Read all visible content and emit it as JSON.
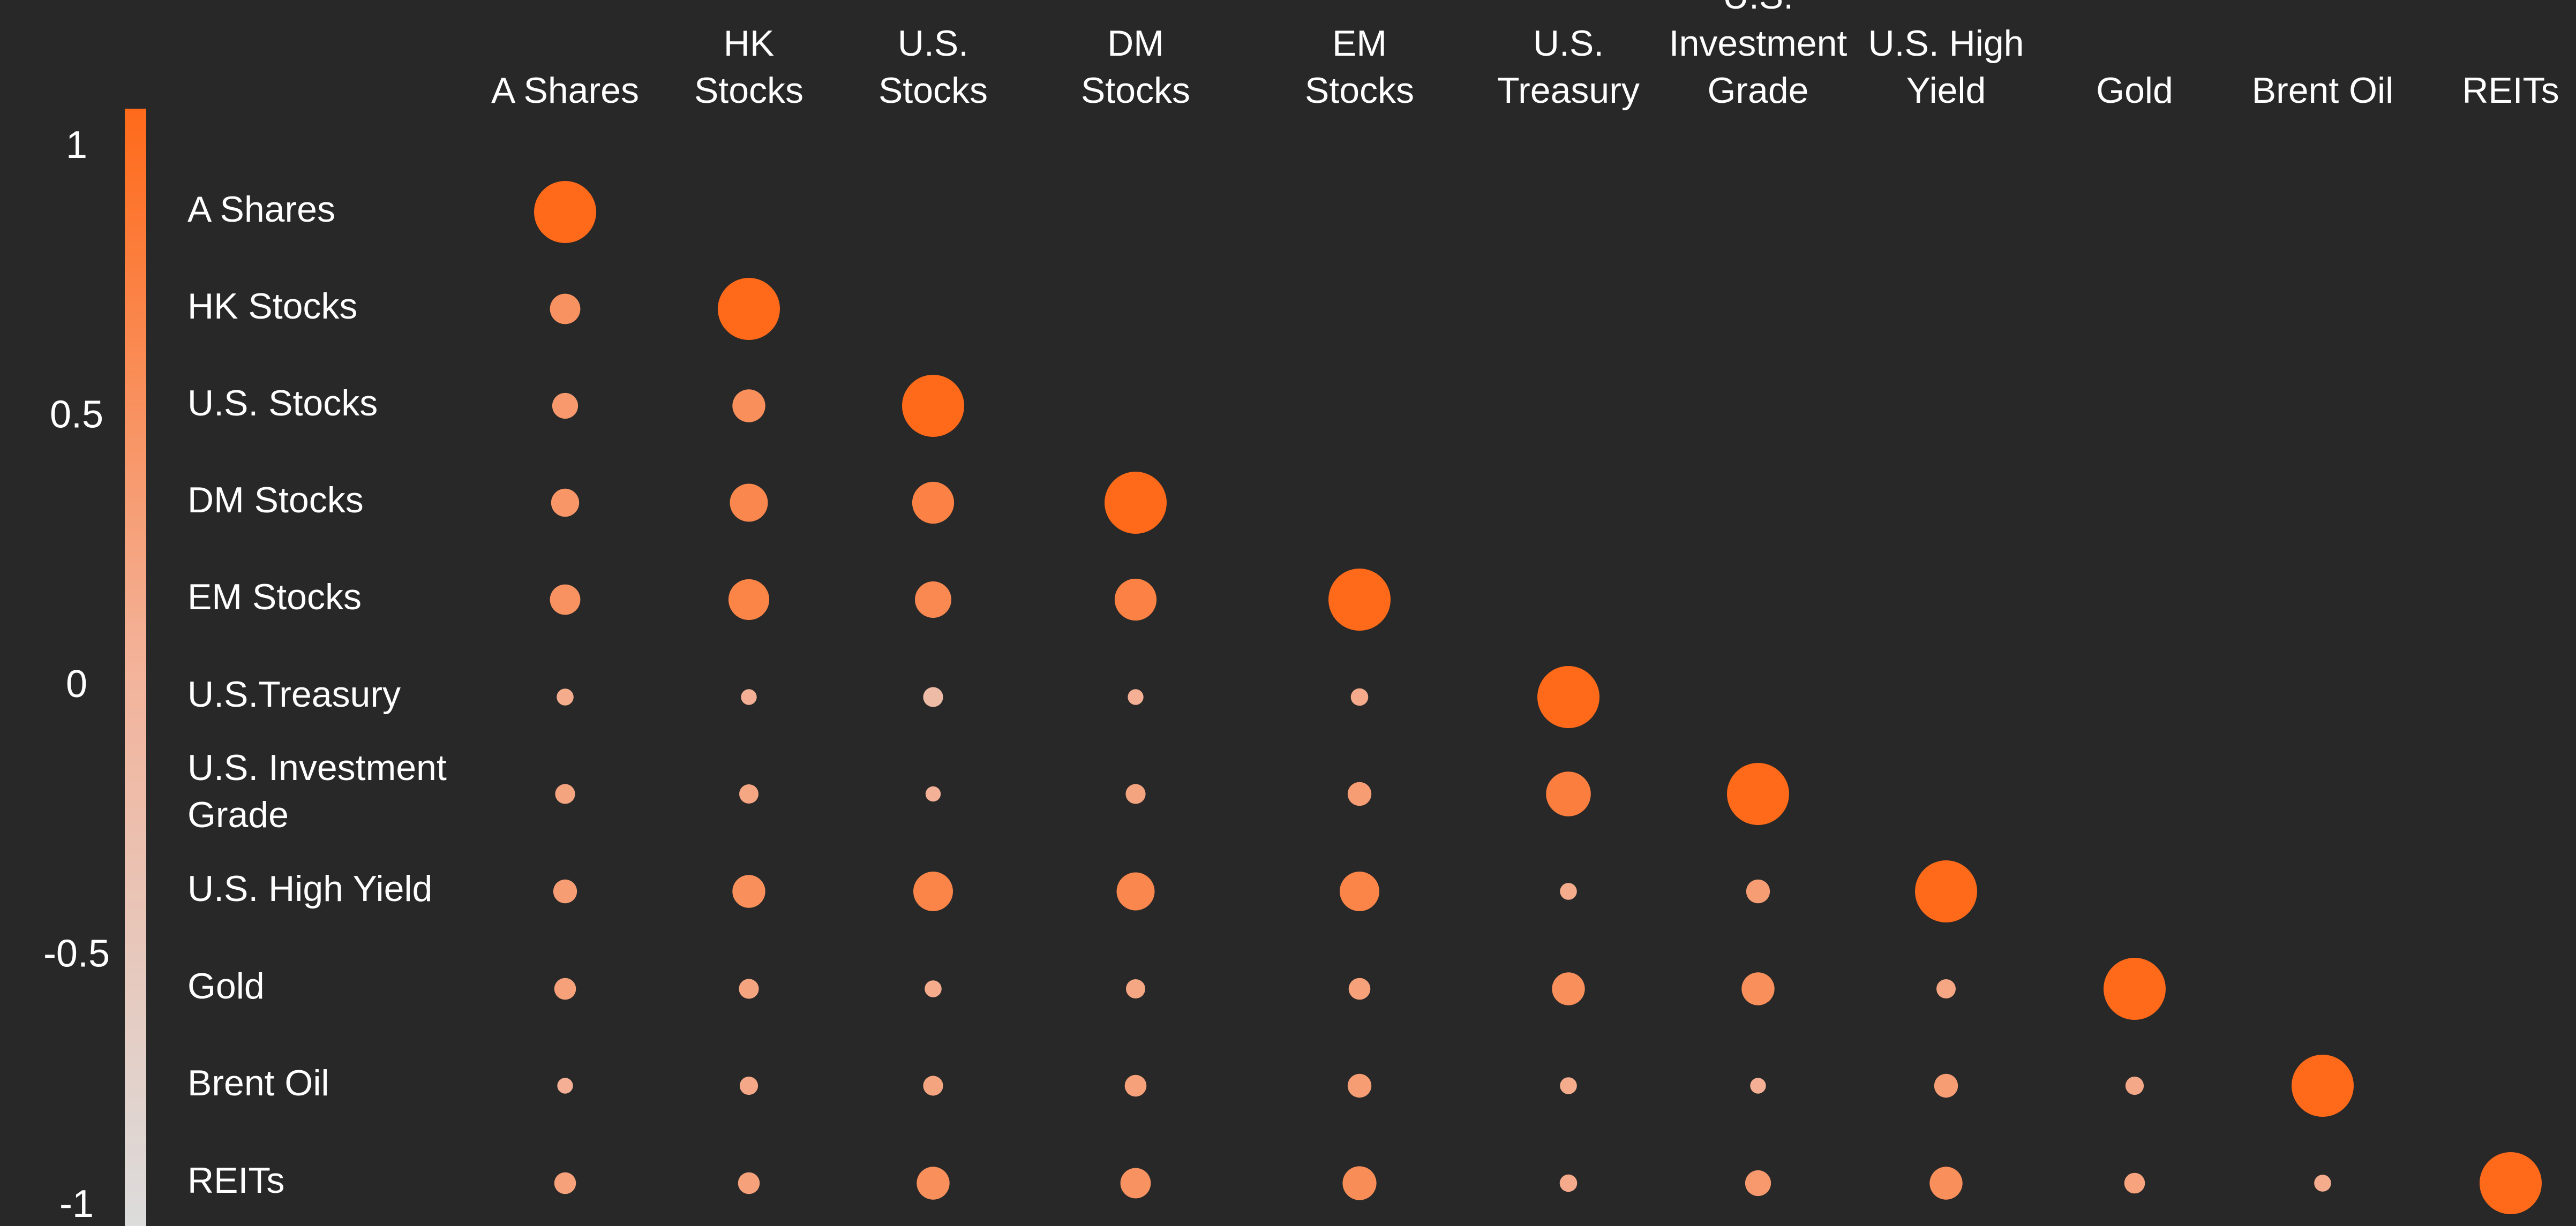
{
  "chart_data": {
    "type": "heatmap",
    "title": "",
    "xlabel": "",
    "ylabel": "",
    "columns": [
      "A Shares",
      "HK Stocks",
      "U.S. Stocks",
      "DM Stocks",
      "EM Stocks",
      "U.S. Treasury",
      "U.S. Investment Grade",
      "U.S. High Yield",
      "Gold",
      "Brent Oil",
      "REITs"
    ],
    "column_labels": [
      [
        "A Shares"
      ],
      [
        "HK",
        "Stocks"
      ],
      [
        "U.S.",
        "Stocks"
      ],
      [
        "DM",
        "Stocks"
      ],
      [
        "EM",
        "Stocks"
      ],
      [
        "U.S.",
        "Treasury"
      ],
      [
        "U.S.",
        "Investment",
        "Grade"
      ],
      [
        "U.S. High",
        "Yield"
      ],
      [
        "Gold"
      ],
      [
        "Brent Oil"
      ],
      [
        "REITs"
      ]
    ],
    "rows": [
      "A Shares",
      "HK Stocks",
      "U.S. Stocks",
      "DM Stocks",
      "EM Stocks",
      "U.S.Treasury",
      "U.S. Investment Grade",
      "U.S. High Yield",
      "Gold",
      "Brent Oil",
      "REITs"
    ],
    "row_labels": [
      [
        "A Shares"
      ],
      [
        "HK Stocks"
      ],
      [
        "U.S. Stocks"
      ],
      [
        "DM Stocks"
      ],
      [
        "EM Stocks"
      ],
      [
        "U.S.Treasury"
      ],
      [
        "U.S. Investment",
        "Grade"
      ],
      [
        "U.S. High Yield"
      ],
      [
        "Gold"
      ],
      [
        "Brent Oil"
      ],
      [
        "REITs"
      ]
    ],
    "matrix": [
      [
        1.0
      ],
      [
        0.45,
        1.0
      ],
      [
        0.35,
        0.5,
        1.0
      ],
      [
        0.4,
        0.6,
        0.67,
        1.0
      ],
      [
        0.45,
        0.65,
        0.57,
        0.67,
        1.0
      ],
      [
        0.1,
        0.05,
        -0.2,
        0.05,
        0.12,
        1.0
      ],
      [
        0.2,
        0.18,
        0.02,
        0.2,
        0.3,
        0.72,
        1.0
      ],
      [
        0.3,
        0.5,
        0.63,
        0.6,
        0.63,
        0.1,
        0.3,
        1.0
      ],
      [
        0.25,
        0.2,
        0.1,
        0.18,
        0.25,
        0.5,
        0.5,
        0.18,
        1.0
      ],
      [
        0.05,
        0.15,
        0.2,
        0.25,
        0.3,
        0.1,
        0.05,
        0.3,
        0.15,
        1.0
      ],
      [
        0.25,
        0.25,
        0.5,
        0.45,
        0.52,
        0.12,
        0.35,
        0.5,
        0.22,
        0.1,
        1.0
      ]
    ],
    "colorbar": {
      "min": -1,
      "max": 1,
      "ticks": [
        "1",
        "0.5",
        "0",
        "-0.5",
        "-1"
      ],
      "tick_values": [
        1,
        0.5,
        0,
        -0.5,
        -1
      ],
      "color_high": "#ff6a1a",
      "color_mid": "#f3b39a",
      "color_low": "#dcdcdc"
    },
    "background": "#282828",
    "text_color": "#ffffff",
    "legend": "colorbar-left"
  }
}
